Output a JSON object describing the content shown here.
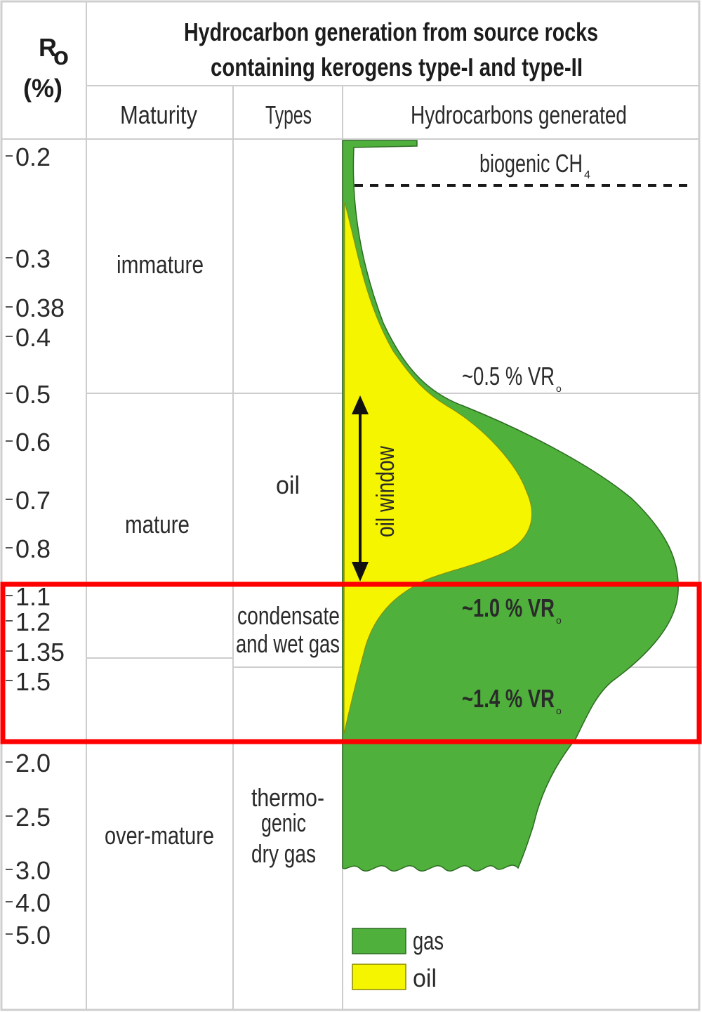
{
  "title_line1": "Hydrocarbon generation from source rocks",
  "title_line2": "containing kerogens type-I and type-II",
  "axis_label_main": "R",
  "axis_label_sub": "o",
  "axis_label_unit": "(%)",
  "headers": {
    "maturity": "Maturity",
    "types": "Types",
    "hydrocarbons": "Hydrocarbons generated"
  },
  "ticks": [
    "0.2",
    "0.3",
    "0.38",
    "0.4",
    "0.5",
    "0.6",
    "0.7",
    "0.8",
    "1.1",
    "1.2",
    "1.35",
    "1.5",
    "2.0",
    "2.5",
    "3.0",
    "4.0",
    "5.0"
  ],
  "maturity": {
    "immature": "immature",
    "mature": "mature",
    "over_mature": "over-mature"
  },
  "types": {
    "oil": "oil",
    "condensate_1": "condensate",
    "condensate_2": "and wet  gas",
    "dry_1": "thermo-",
    "dry_2": "genic",
    "dry_3": "dry gas"
  },
  "annotations": {
    "biogenic": "biogenic CH",
    "biogenic_sub": "4",
    "vr05": "~0.5 % VR",
    "vr10": "~1.0 % VR",
    "vr14": "~1.4 % VR",
    "vr_sub": "o",
    "oil_window": "oil window"
  },
  "legend": {
    "gas": "gas",
    "oil": "oil"
  },
  "colors": {
    "gas": "#4fb03c",
    "oil": "#f5f500",
    "highlight": "#ff0000",
    "grid": "#c8c8c8"
  }
}
